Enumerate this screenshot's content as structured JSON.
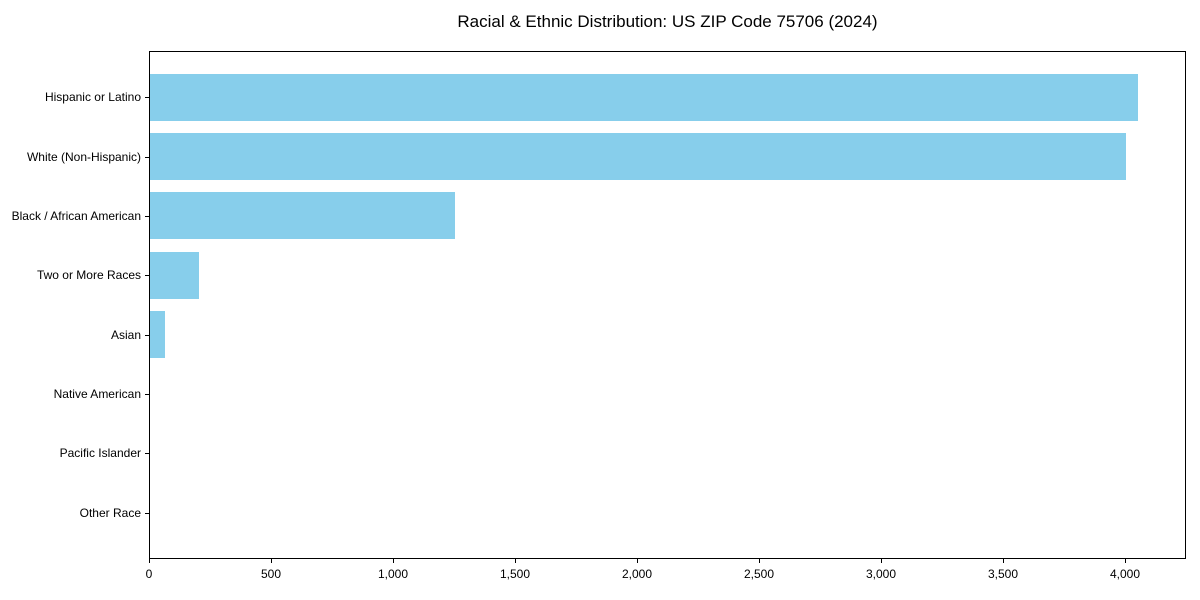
{
  "figure": {
    "background": "#ffffff"
  },
  "chart_data": {
    "type": "bar",
    "orientation": "horizontal",
    "title": "Racial & Ethnic Distribution: US ZIP Code 75706 (2024)",
    "categories": [
      "Hispanic or Latino",
      "White (Non-Hispanic)",
      "Black / African American",
      "Two or More Races",
      "Asian",
      "Native American",
      "Pacific Islander",
      "Other Race"
    ],
    "values": [
      4050,
      4000,
      1250,
      200,
      60,
      0,
      0,
      0
    ],
    "xlabel": "",
    "ylabel": "",
    "xlim": [
      0,
      4252
    ],
    "xticks": [
      0,
      500,
      1000,
      1500,
      2000,
      2500,
      3000,
      3500,
      4000
    ],
    "xtick_labels": [
      "0",
      "500",
      "1,000",
      "1,500",
      "2,000",
      "2,500",
      "3,000",
      "3,500",
      "4,000"
    ],
    "bar_color": "#87CEEB",
    "axis_color": "#000000",
    "grid": false,
    "legend": null
  }
}
